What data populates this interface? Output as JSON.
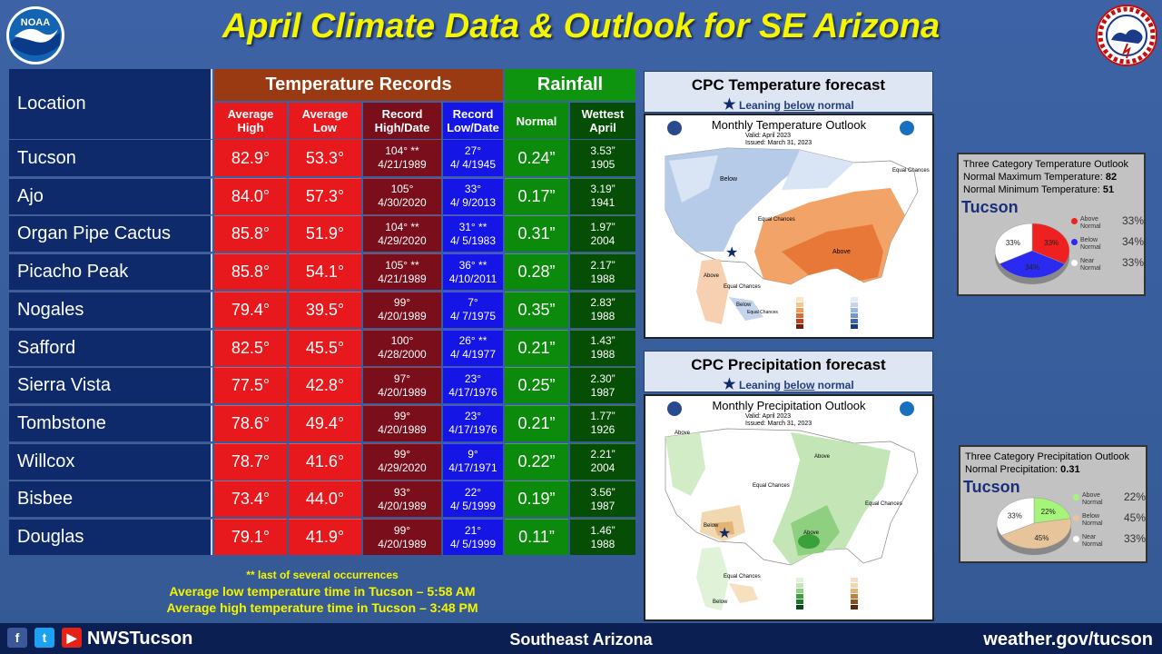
{
  "title": "April Climate Data & Outlook for SE Arizona",
  "table": {
    "location_header": "Location",
    "temp_header": "Temperature Records",
    "rain_header": "Rainfall",
    "col_avg_high": "Average High",
    "col_avg_low": "Average Low",
    "col_rec_high": "Record High/Date",
    "col_rec_low": "Record Low/Date",
    "col_normal": "Normal",
    "col_wettest": "Wettest April",
    "rows": [
      {
        "loc": "Tucson",
        "avh": "82.9°",
        "avl": "53.3°",
        "rh": "104° **",
        "rhd": "4/21/1989",
        "rl": "27°",
        "rld": "4/ 4/1945",
        "nrm": "0.24”",
        "wet": "3.53”",
        "wety": "1905"
      },
      {
        "loc": "Ajo",
        "avh": "84.0°",
        "avl": "57.3°",
        "rh": "105°",
        "rhd": "4/30/2020",
        "rl": "33°",
        "rld": "4/ 9/2013",
        "nrm": "0.17”",
        "wet": "3.19”",
        "wety": "1941"
      },
      {
        "loc": "Organ Pipe Cactus",
        "avh": "85.8°",
        "avl": "51.9°",
        "rh": "104° **",
        "rhd": "4/29/2020",
        "rl": "31° **",
        "rld": "4/ 5/1983",
        "nrm": "0.31”",
        "wet": "1.97”",
        "wety": "2004"
      },
      {
        "loc": "Picacho Peak",
        "avh": "85.8°",
        "avl": "54.1°",
        "rh": "105° **",
        "rhd": "4/21/1989",
        "rl": "36° **",
        "rld": "4/10/2011",
        "nrm": "0.28”",
        "wet": "2.17”",
        "wety": "1988"
      },
      {
        "loc": "Nogales",
        "avh": "79.4°",
        "avl": "39.5°",
        "rh": "99°",
        "rhd": "4/20/1989",
        "rl": "7°",
        "rld": "4/ 7/1975",
        "nrm": "0.35”",
        "wet": "2.83”",
        "wety": "1988"
      },
      {
        "loc": "Safford",
        "avh": "82.5°",
        "avl": "45.5°",
        "rh": "100°",
        "rhd": "4/28/2000",
        "rl": "26° **",
        "rld": "4/ 4/1977",
        "nrm": "0.21”",
        "wet": "1.43”",
        "wety": "1988"
      },
      {
        "loc": "Sierra Vista",
        "avh": "77.5°",
        "avl": "42.8°",
        "rh": "97°",
        "rhd": "4/20/1989",
        "rl": "23°",
        "rld": "4/17/1976",
        "nrm": "0.25”",
        "wet": "2.30”",
        "wety": "1987"
      },
      {
        "loc": "Tombstone",
        "avh": "78.6°",
        "avl": "49.4°",
        "rh": "99°",
        "rhd": "4/20/1989",
        "rl": "23°",
        "rld": "4/17/1976",
        "nrm": "0.21”",
        "wet": "1.77”",
        "wety": "1926"
      },
      {
        "loc": "Willcox",
        "avh": "78.7°",
        "avl": "41.6°",
        "rh": "99°",
        "rhd": "4/29/2020",
        "rl": "9°",
        "rld": "4/17/1971",
        "nrm": "0.22”",
        "wet": "2.21”",
        "wety": "2004"
      },
      {
        "loc": "Bisbee",
        "avh": "73.4°",
        "avl": "44.0°",
        "rh": "93°",
        "rhd": "4/20/1989",
        "rl": "22°",
        "rld": "4/ 5/1999",
        "nrm": "0.19”",
        "wet": "3.56”",
        "wety": "1987"
      },
      {
        "loc": "Douglas",
        "avh": "79.1°",
        "avl": "41.9°",
        "rh": "99°",
        "rhd": "4/20/1989",
        "rl": "21°",
        "rld": "4/ 5/1999",
        "nrm": "0.11”",
        "wet": "1.46”",
        "wety": "1988"
      }
    ]
  },
  "footnotes": {
    "occurrences": "** last of several occurrences",
    "low_time": "Average low temperature time in Tucson – 5:58 AM",
    "high_time": "Average high temperature time in Tucson – 3:48 PM"
  },
  "temp_forecast": {
    "header": "CPC Temperature forecast",
    "lean_prefix": "Leaning ",
    "lean_word": "below",
    "lean_suffix": " normal",
    "map_title": "Monthly Temperature Outlook",
    "valid": "Valid:  April 2023",
    "issued": "Issued:  March 31, 2023",
    "labels": {
      "below": "Below",
      "equal1": "Equal Chances",
      "equal2": "Equal Chances",
      "above": "Above",
      "above_ak": "Above",
      "equal_ak": "Equal Chances",
      "below_hi": "Below",
      "equal_hi": "Equal Chances"
    }
  },
  "precip_forecast": {
    "header": "CPC Precipitation forecast",
    "lean_prefix": "Leaning ",
    "lean_word": "below",
    "lean_suffix": " normal",
    "map_title": "Monthly Precipitation Outlook",
    "valid": "Valid:  April 2023",
    "issued": "Issued:  March 31, 2023",
    "labels": {
      "above_w": "Above",
      "above_c": "Above",
      "equal_w": "Equal Chances",
      "equal_e": "Equal Chances",
      "above_s": "Above",
      "below_sw": "Below",
      "equal_ak": "Equal Chances",
      "below_hi": "Below"
    }
  },
  "temp_pie": {
    "title_line": "Three Category Temperature Outlook",
    "max_label": "Normal Maximum Temperature: ",
    "max_value": "82",
    "min_label": "Normal Minimum Temperature: ",
    "min_value": "51",
    "city": "Tucson",
    "slices": [
      {
        "name": "Above Normal",
        "value": 33,
        "label": "33%",
        "color": "#ee2020"
      },
      {
        "name": "Below Normal",
        "value": 34,
        "label": "34%",
        "color": "#2a2af0"
      },
      {
        "name": "Near Normal",
        "value": 33,
        "label": "33%",
        "color": "#ffffff"
      }
    ]
  },
  "precip_pie": {
    "title_line": "Three Category Precipitation Outlook",
    "normal_label": "Normal Precipitation: ",
    "normal_value": "0.31",
    "city": "Tucson",
    "slices": [
      {
        "name": "Above Normal",
        "value": 22,
        "label": "22%",
        "color": "#a6f57a"
      },
      {
        "name": "Below Normal",
        "value": 45,
        "label": "45%",
        "color": "#e8c49a"
      },
      {
        "name": "Near Normal",
        "value": 33,
        "label": "33%",
        "color": "#ffffff"
      }
    ]
  },
  "footer": {
    "handle": "NWSTucson",
    "center": "Southeast Arizona",
    "url": "weather.gov/tucson"
  },
  "colors": {
    "title": "#f5f500",
    "location_bg": "#0e2a6b",
    "temp_header": "#9a3a12",
    "rain_header": "#0f9410"
  }
}
